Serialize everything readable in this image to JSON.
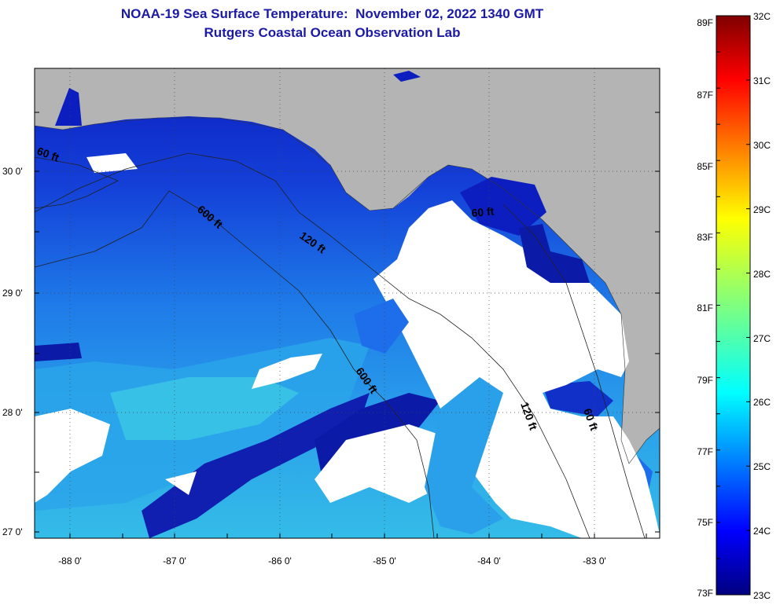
{
  "title": {
    "line1": "NOAA-19 Sea Surface Temperature:  November 02, 2022 1340 GMT",
    "line2": "Rutgers Coastal Ocean Observation Lab"
  },
  "map": {
    "lat_labels": [
      "30 0'",
      "29 0'",
      "28 0'",
      "27 0'"
    ],
    "lon_labels": [
      "-88 0'",
      "-87 0'",
      "-86 0'",
      "-85 0'",
      "-84 0'",
      "-83 0'"
    ],
    "contour_labels": {
      "c60_west": "60 ft",
      "c600_a": "600 ft",
      "c120_a": "120 ft",
      "c60_bay": "60 ft",
      "c600_b": "600 ft",
      "c120_b": "120 ft",
      "c60_east": "60 ft"
    },
    "colors": {
      "land": "#b4b4b4",
      "cloud": "#ffffff",
      "deep_blue": "#0a14b4",
      "mid_blue": "#1e6eec",
      "light_blue": "#28a8ec",
      "cyan": "#3cc8e6"
    }
  },
  "colorbar": {
    "f_labels": [
      "89F",
      "87F",
      "85F",
      "83F",
      "81F",
      "79F",
      "77F",
      "75F",
      "73F"
    ],
    "c_labels": [
      "32C",
      "31C",
      "30C",
      "29C",
      "28C",
      "27C",
      "26C",
      "25C",
      "24C",
      "23C"
    ],
    "range_f": [
      73,
      89
    ],
    "range_c": [
      23,
      32
    ]
  }
}
